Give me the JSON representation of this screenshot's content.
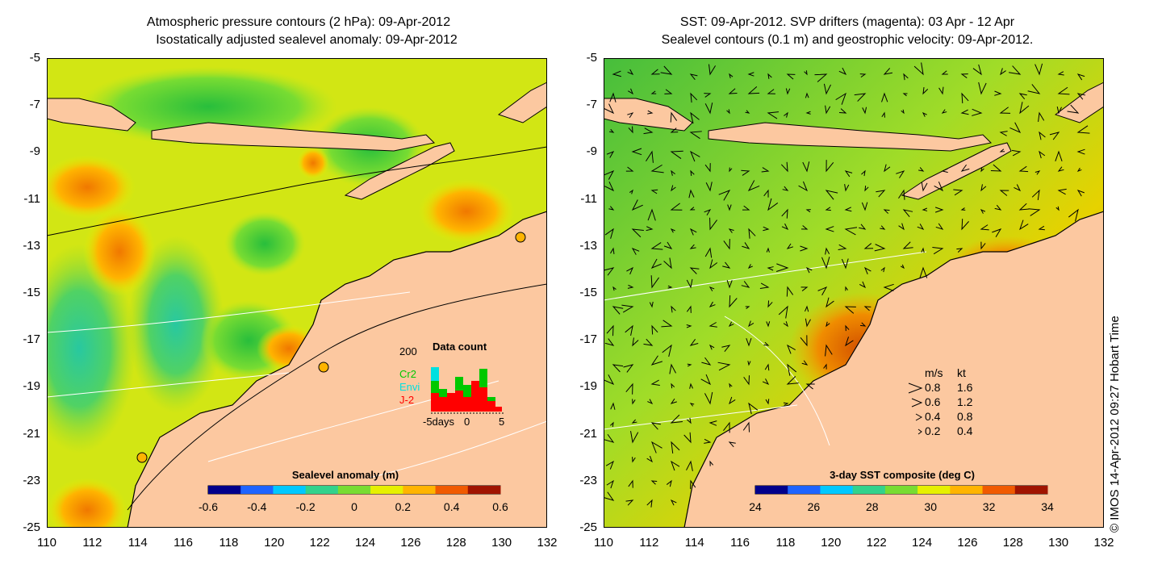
{
  "left_panel": {
    "title_line1": "Atmospheric pressure contours (2 hPa): 09-Apr-2012",
    "title_line2": "Isostatically adjusted sealevel anomaly: 09-Apr-2012",
    "colorbar_label": "Sealevel anomaly (m)",
    "colorbar_ticks": [
      "-0.6",
      "-0.4",
      "-0.2",
      "0",
      "0.2",
      "0.4",
      "0.6"
    ],
    "colorbar_colors": [
      "#00008b",
      "#1e64ff",
      "#00c8ff",
      "#32d28c",
      "#78dc32",
      "#e6f000",
      "#ffb400",
      "#f05a00",
      "#a01400"
    ],
    "inset": {
      "title": "Data count",
      "ymax_label": "200",
      "xlabel": "-5days",
      "x_tick_mid": "0",
      "x_tick_right": "5",
      "legend": [
        {
          "label": "Cr2",
          "color": "#00c800"
        },
        {
          "label": "Envi",
          "color": "#00e0e0"
        },
        {
          "label": "J-2",
          "color": "#ff0000"
        }
      ]
    }
  },
  "right_panel": {
    "title_line1": "SST: 09-Apr-2012. SVP drifters (magenta): 03 Apr - 12 Apr",
    "title_line2": "Sealevel contours (0.1 m) and geostrophic velocity: 09-Apr-2012.",
    "colorbar_label": "3-day SST composite (deg C)",
    "colorbar_ticks": [
      "24",
      "26",
      "28",
      "30",
      "32",
      "34"
    ],
    "colorbar_colors": [
      "#00008b",
      "#1e64ff",
      "#00c8ff",
      "#32d28c",
      "#78dc32",
      "#e6f000",
      "#ffb400",
      "#f05a00",
      "#a01400"
    ],
    "velocity_legend": {
      "header_ms": "m/s",
      "header_kt": "kt",
      "rows": [
        {
          "ms": "0.8",
          "kt": "1.6"
        },
        {
          "ms": "0.6",
          "kt": "1.2"
        },
        {
          "ms": "0.4",
          "kt": "0.8"
        },
        {
          "ms": "0.2",
          "kt": "0.4"
        }
      ]
    }
  },
  "axes": {
    "lat_ticks": [
      "-5",
      "-7",
      "-9",
      "-11",
      "-13",
      "-15",
      "-17",
      "-19",
      "-21",
      "-23",
      "-25"
    ],
    "lon_ticks": [
      "110",
      "112",
      "114",
      "116",
      "118",
      "120",
      "122",
      "124",
      "126",
      "128",
      "130",
      "132"
    ]
  },
  "credit": "© IMOS 14-Apr-2012 09:27 Hobart Time",
  "colors": {
    "land": "#fcc8a0",
    "coast": "#000000"
  }
}
